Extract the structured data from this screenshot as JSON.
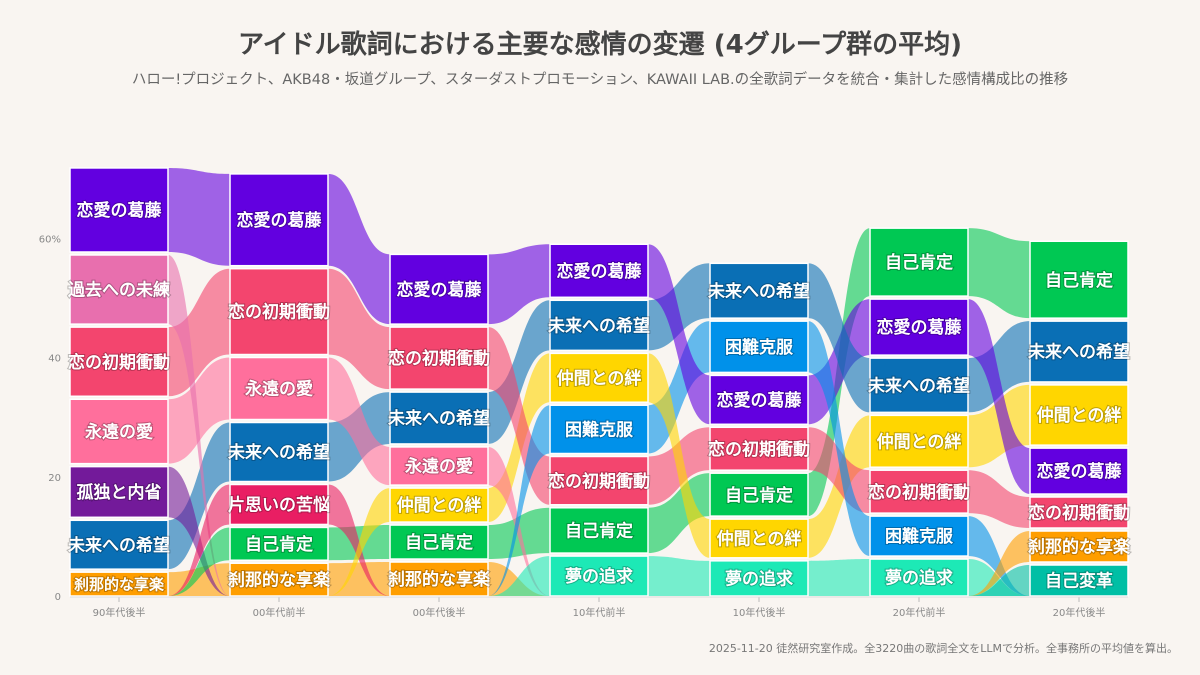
{
  "title": "アイドル歌詞における主要な感情の変遷 (4グループ群の平均)",
  "subtitle": "ハロー!プロジェクト、AKB48・坂道グループ、スターダストプロモーション、KAWAII LAB.の全歌詞データを統合・集計した感情構成比の推移",
  "footer": "2025-11-20 徒然研究室作成。全3220曲の歌詞全文をLLMで分析。全事務所の平均値を算出。",
  "chart_data": {
    "type": "alluvial",
    "title": "アイドル歌詞における主要な感情の変遷 (4グループ群の平均)",
    "y_ticks": [
      "0",
      "20",
      "40",
      "60%"
    ],
    "y_tick_values": [
      0,
      20,
      40,
      60
    ],
    "ylim": [
      0,
      72
    ],
    "grid": false,
    "colors": {
      "恋愛の葛藤": "#6200e0",
      "過去への未練": "#e86fae",
      "恋の初期衝動": "#f3456e",
      "永遠の愛": "#ff6f9c",
      "孤独と内省": "#731a9a",
      "未来への希望": "#0a6fb5",
      "刹那的な享楽": "#ff9e00",
      "片思いの苦悩": "#e91e63",
      "自己肯定": "#00c853",
      "仲間との絆": "#ffd600",
      "困難克服": "#0091ea",
      "夢の追求": "#1de9b6",
      "自己変革": "#00bfa5"
    },
    "columns": [
      {
        "label": "90年代後半",
        "nodes": [
          {
            "name": "恋愛の葛藤",
            "value": 14.1
          },
          {
            "name": "過去への未練",
            "value": 11.6
          },
          {
            "name": "恋の初期衝動",
            "value": 11.6
          },
          {
            "name": "永遠の愛",
            "value": 10.8
          },
          {
            "name": "孤独と内省",
            "value": 8.5
          },
          {
            "name": "未来への希望",
            "value": 8.2
          },
          {
            "name": "刹那的な享楽",
            "value": 4.0
          }
        ]
      },
      {
        "label": "00年代前半",
        "nodes": [
          {
            "name": "恋愛の葛藤",
            "value": 15.4
          },
          {
            "name": "恋の初期衝動",
            "value": 14.4
          },
          {
            "name": "永遠の愛",
            "value": 10.4
          },
          {
            "name": "未来への希望",
            "value": 9.9
          },
          {
            "name": "片思いの苦悩",
            "value": 6.7
          },
          {
            "name": "自己肯定",
            "value": 5.5
          },
          {
            "name": "刹那的な享楽",
            "value": 5.5
          }
        ]
      },
      {
        "label": "00年代後半",
        "nodes": [
          {
            "name": "恋愛の葛藤",
            "value": 11.7
          },
          {
            "name": "恋の初期衝動",
            "value": 10.4
          },
          {
            "name": "未来への希望",
            "value": 8.7
          },
          {
            "name": "永遠の愛",
            "value": 6.4
          },
          {
            "name": "仲間との絆",
            "value": 5.7
          },
          {
            "name": "自己肯定",
            "value": 5.7
          },
          {
            "name": "刹那的な享楽",
            "value": 5.7
          }
        ]
      },
      {
        "label": "10年代前半",
        "nodes": [
          {
            "name": "恋愛の葛藤",
            "value": 8.9
          },
          {
            "name": "未来への希望",
            "value": 8.4
          },
          {
            "name": "仲間との絆",
            "value": 8.2
          },
          {
            "name": "困難克服",
            "value": 8.1
          },
          {
            "name": "恋の初期衝動",
            "value": 8.1
          },
          {
            "name": "自己肯定",
            "value": 7.6
          },
          {
            "name": "夢の追求",
            "value": 6.7
          }
        ]
      },
      {
        "label": "10年代後半",
        "nodes": [
          {
            "name": "未来への希望",
            "value": 9.2
          },
          {
            "name": "困難克服",
            "value": 8.6
          },
          {
            "name": "恋愛の葛藤",
            "value": 8.2
          },
          {
            "name": "恋の初期衝動",
            "value": 7.2
          },
          {
            "name": "自己肯定",
            "value": 7.2
          },
          {
            "name": "仲間との絆",
            "value": 6.5
          },
          {
            "name": "夢の追求",
            "value": 5.9
          }
        ]
      },
      {
        "label": "20年代前半",
        "nodes": [
          {
            "name": "自己肯定",
            "value": 11.4
          },
          {
            "name": "恋愛の葛藤",
            "value": 9.4
          },
          {
            "name": "未来への希望",
            "value": 9.1
          },
          {
            "name": "仲間との絆",
            "value": 8.7
          },
          {
            "name": "恋の初期衝動",
            "value": 7.2
          },
          {
            "name": "困難克服",
            "value": 6.7
          },
          {
            "name": "夢の追求",
            "value": 6.2
          }
        ]
      },
      {
        "label": "20年代後半",
        "nodes": [
          {
            "name": "自己肯定",
            "value": 12.9
          },
          {
            "name": "未来への希望",
            "value": 10.2
          },
          {
            "name": "仲間との絆",
            "value": 10.1
          },
          {
            "name": "恋愛の葛藤",
            "value": 7.7
          },
          {
            "name": "恋の初期衝動",
            "value": 5.2
          },
          {
            "name": "刹那的な享楽",
            "value": 5.2
          },
          {
            "name": "自己変革",
            "value": 5.2
          }
        ]
      }
    ]
  }
}
